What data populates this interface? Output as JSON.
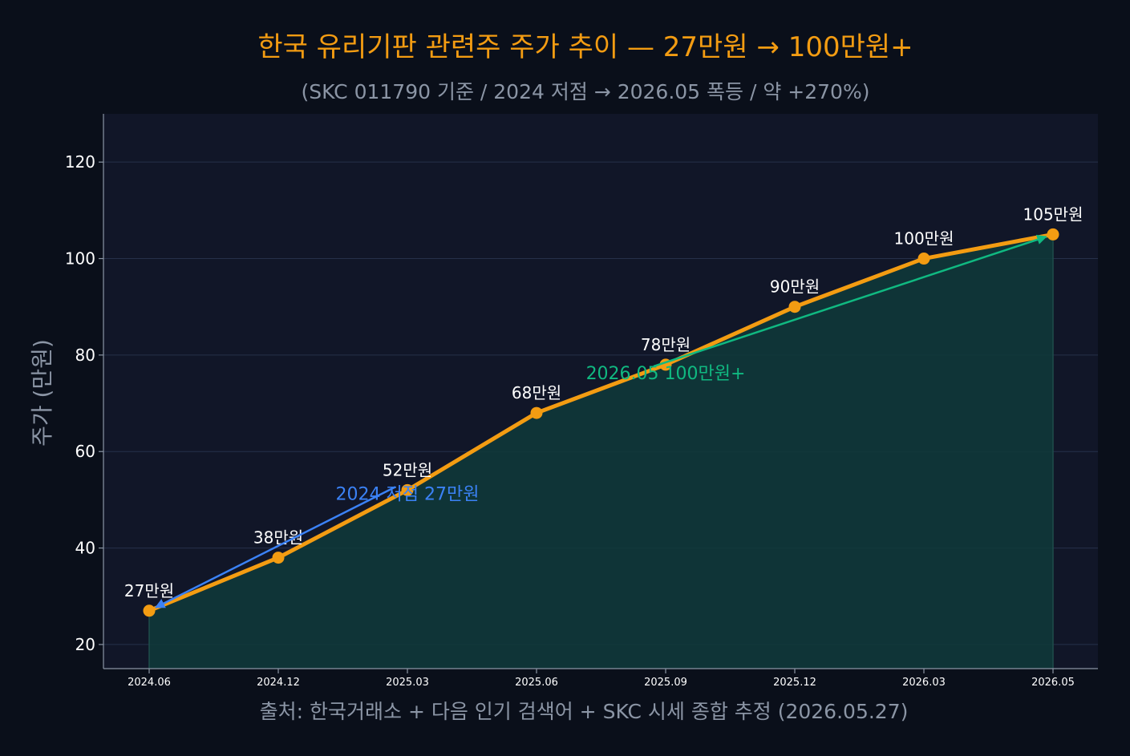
{
  "chart_data": {
    "type": "line",
    "title": "한국 유리기판 관련주 주가 추이 — 27만원 → 100만원+",
    "subtitle": "(SKC 011790 기준 / 2024 저점 → 2026.05 폭등 / 약 +270%)",
    "xlabel": "",
    "ylabel": "주가 (만원)",
    "source": "출처: 한국거래소 + 다음 인기 검색어 + SKC 시세 종합 추정 (2026.05.27)",
    "categories": [
      "2024.06",
      "2024.12",
      "2025.03",
      "2025.06",
      "2025.09",
      "2025.12",
      "2026.03",
      "2026.05"
    ],
    "series": [
      {
        "values": [
          27,
          38,
          52,
          68,
          78,
          90,
          100,
          105
        ],
        "labels": [
          "27만원",
          "38만원",
          "52만원",
          "68만원",
          "78만원",
          "90만원",
          "100만원",
          "105만원"
        ]
      }
    ],
    "ylim": [
      15,
      130
    ],
    "yticks": [
      20,
      40,
      60,
      80,
      100,
      120
    ],
    "grid": true,
    "annotations": [
      {
        "text": "2024 저점 27만원",
        "target_index": 0,
        "text_x": "2025.03",
        "text_y": 50,
        "color": "#3b82f6"
      },
      {
        "text": "2026.05 100만원+",
        "target_index": 7,
        "text_x": "2025.09",
        "text_y": 75,
        "color": "#10b981"
      }
    ],
    "colors": {
      "line": "#f39c12",
      "fill": "#0f3a3a",
      "plot_bg": "#111628",
      "page_bg": "#0a0f1a",
      "grid": "#26304a",
      "axis": "#8b95a5"
    }
  }
}
